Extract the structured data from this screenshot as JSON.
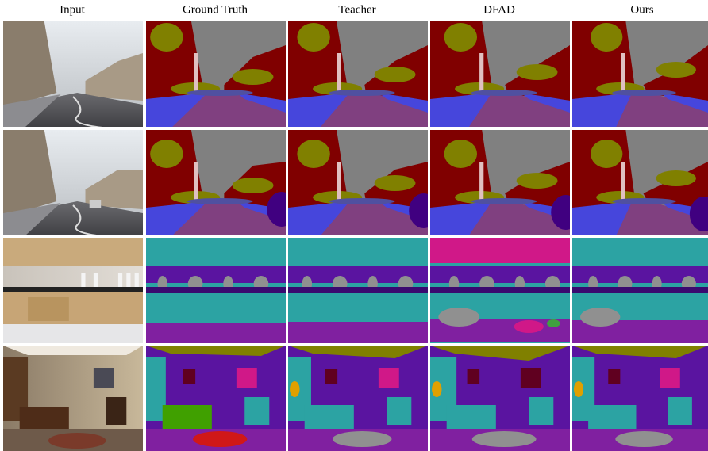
{
  "headers": [
    "Input",
    "Ground Truth",
    "Teacher",
    "DFAD",
    "Ours"
  ]
}
